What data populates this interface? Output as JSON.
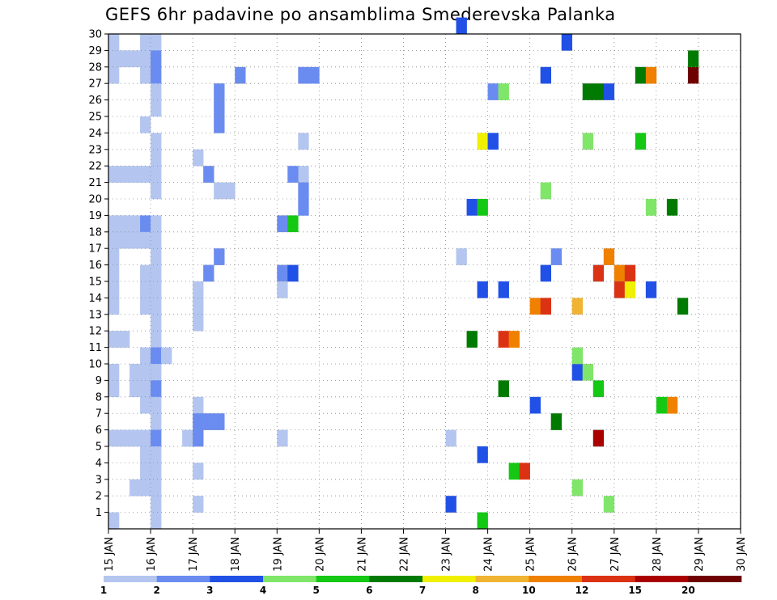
{
  "title": "GEFS 6hr padavine po ansamblima Smederevska Palanka",
  "chart_data": {
    "type": "heatmap",
    "title": "GEFS 6hr padavine po ansamblima Smederevska Palanka",
    "y_tick_labels": [
      "1",
      "2",
      "3",
      "4",
      "5",
      "6",
      "7",
      "8",
      "9",
      "10",
      "11",
      "12",
      "13",
      "14",
      "15",
      "16",
      "17",
      "18",
      "19",
      "20",
      "21",
      "22",
      "23",
      "24",
      "25",
      "26",
      "27",
      "28",
      "29",
      "30"
    ],
    "x_tick_labels": [
      "15 JAN",
      "16 JAN",
      "17 JAN",
      "18 JAN",
      "19 JAN",
      "20 JAN",
      "21 JAN",
      "22 JAN",
      "23 JAN",
      "24 JAN",
      "25 JAN",
      "26 JAN",
      "27 JAN",
      "28 JAN",
      "29 JAN",
      "30 JAN"
    ],
    "ylim": [
      0,
      30
    ],
    "grid": true,
    "legend": {
      "position": "bottom",
      "labels": [
        "1",
        "2",
        "3",
        "4",
        "5",
        "6",
        "7",
        "8",
        "10",
        "12",
        "15",
        "20"
      ],
      "colors": [
        "#b4c6f0",
        "#6a8cf0",
        "#2050e6",
        "#80e66a",
        "#14c814",
        "#007a00",
        "#f0f000",
        "#f0b432",
        "#f08000",
        "#dc3214",
        "#aa0000",
        "#6e0000"
      ]
    },
    "cells": [
      {
        "date": "15 JAN",
        "period": "00",
        "member": 29,
        "value": 1
      },
      {
        "date": "15 JAN",
        "period": "00",
        "member": 28,
        "value": 1
      },
      {
        "date": "15 JAN",
        "period": "00",
        "member": 27,
        "value": 1
      },
      {
        "date": "15 JAN",
        "period": "00",
        "member": 21,
        "value": 1
      },
      {
        "date": "15 JAN",
        "period": "00",
        "member": 18,
        "value": 1
      },
      {
        "date": "15 JAN",
        "period": "00",
        "member": 17,
        "value": 1
      },
      {
        "date": "15 JAN",
        "period": "00",
        "member": 16,
        "value": 1
      },
      {
        "date": "15 JAN",
        "period": "00",
        "member": 15,
        "value": 1
      },
      {
        "date": "15 JAN",
        "period": "00",
        "member": 14,
        "value": 1
      },
      {
        "date": "15 JAN",
        "period": "00",
        "member": 13,
        "value": 1
      },
      {
        "date": "15 JAN",
        "period": "00",
        "member": 11,
        "value": 1
      },
      {
        "date": "15 JAN",
        "period": "00",
        "member": 9,
        "value": 1
      },
      {
        "date": "15 JAN",
        "period": "00",
        "member": 8,
        "value": 1
      },
      {
        "date": "15 JAN",
        "period": "00",
        "member": 5,
        "value": 1
      },
      {
        "date": "15 JAN",
        "period": "00",
        "member": 0,
        "value": 1
      },
      {
        "date": "15 JAN",
        "period": "06",
        "member": 28,
        "value": 1
      },
      {
        "date": "15 JAN",
        "period": "06",
        "member": 21,
        "value": 1
      },
      {
        "date": "15 JAN",
        "period": "06",
        "member": 18,
        "value": 1
      },
      {
        "date": "15 JAN",
        "period": "06",
        "member": 17,
        "value": 1
      },
      {
        "date": "15 JAN",
        "period": "06",
        "member": 11,
        "value": 1
      },
      {
        "date": "15 JAN",
        "period": "06",
        "member": 5,
        "value": 1
      },
      {
        "date": "15 JAN",
        "period": "12",
        "member": 28,
        "value": 1
      },
      {
        "date": "15 JAN",
        "period": "12",
        "member": 21,
        "value": 1
      },
      {
        "date": "15 JAN",
        "period": "12",
        "member": 18,
        "value": 1
      },
      {
        "date": "15 JAN",
        "period": "12",
        "member": 17,
        "value": 1
      },
      {
        "date": "15 JAN",
        "period": "12",
        "member": 9,
        "value": 1
      },
      {
        "date": "15 JAN",
        "period": "12",
        "member": 8,
        "value": 1
      },
      {
        "date": "15 JAN",
        "period": "12",
        "member": 5,
        "value": 1
      },
      {
        "date": "15 JAN",
        "period": "12",
        "member": 2,
        "value": 1
      },
      {
        "date": "15 JAN",
        "period": "18",
        "member": 29,
        "value": 1
      },
      {
        "date": "15 JAN",
        "period": "18",
        "member": 28,
        "value": 1
      },
      {
        "date": "15 JAN",
        "period": "18",
        "member": 27,
        "value": 1
      },
      {
        "date": "15 JAN",
        "period": "18",
        "member": 24,
        "value": 1
      },
      {
        "date": "15 JAN",
        "period": "18",
        "member": 21,
        "value": 1
      },
      {
        "date": "15 JAN",
        "period": "18",
        "member": 18,
        "value": 2
      },
      {
        "date": "15 JAN",
        "period": "18",
        "member": 17,
        "value": 1
      },
      {
        "date": "15 JAN",
        "period": "18",
        "member": 15,
        "value": 1
      },
      {
        "date": "15 JAN",
        "period": "18",
        "member": 14,
        "value": 1
      },
      {
        "date": "15 JAN",
        "period": "18",
        "member": 13,
        "value": 1
      },
      {
        "date": "15 JAN",
        "period": "18",
        "member": 10,
        "value": 1
      },
      {
        "date": "15 JAN",
        "period": "18",
        "member": 9,
        "value": 1
      },
      {
        "date": "15 JAN",
        "period": "18",
        "member": 8,
        "value": 1
      },
      {
        "date": "15 JAN",
        "period": "18",
        "member": 7,
        "value": 1
      },
      {
        "date": "15 JAN",
        "period": "18",
        "member": 5,
        "value": 1
      },
      {
        "date": "15 JAN",
        "period": "18",
        "member": 4,
        "value": 1
      },
      {
        "date": "15 JAN",
        "period": "18",
        "member": 3,
        "value": 1
      },
      {
        "date": "15 JAN",
        "period": "18",
        "member": 2,
        "value": 1
      },
      {
        "date": "16 JAN",
        "period": "00",
        "member": 29,
        "value": 1
      },
      {
        "date": "16 JAN",
        "period": "00",
        "member": 28,
        "value": 2
      },
      {
        "date": "16 JAN",
        "period": "00",
        "member": 27,
        "value": 2
      },
      {
        "date": "16 JAN",
        "period": "00",
        "member": 26,
        "value": 1
      },
      {
        "date": "16 JAN",
        "period": "00",
        "member": 25,
        "value": 1
      },
      {
        "date": "16 JAN",
        "period": "00",
        "member": 23,
        "value": 1
      },
      {
        "date": "16 JAN",
        "period": "00",
        "member": 22,
        "value": 1
      },
      {
        "date": "16 JAN",
        "period": "00",
        "member": 21,
        "value": 1
      },
      {
        "date": "16 JAN",
        "period": "00",
        "member": 20,
        "value": 1
      },
      {
        "date": "16 JAN",
        "period": "00",
        "member": 18,
        "value": 1
      },
      {
        "date": "16 JAN",
        "period": "00",
        "member": 17,
        "value": 1
      },
      {
        "date": "16 JAN",
        "period": "00",
        "member": 16,
        "value": 1
      },
      {
        "date": "16 JAN",
        "period": "00",
        "member": 15,
        "value": 1
      },
      {
        "date": "16 JAN",
        "period": "00",
        "member": 14,
        "value": 1
      },
      {
        "date": "16 JAN",
        "period": "00",
        "member": 13,
        "value": 1
      },
      {
        "date": "16 JAN",
        "period": "00",
        "member": 12,
        "value": 1
      },
      {
        "date": "16 JAN",
        "period": "00",
        "member": 11,
        "value": 1
      },
      {
        "date": "16 JAN",
        "period": "00",
        "member": 10,
        "value": 2
      },
      {
        "date": "16 JAN",
        "period": "00",
        "member": 9,
        "value": 1
      },
      {
        "date": "16 JAN",
        "period": "00",
        "member": 8,
        "value": 2
      },
      {
        "date": "16 JAN",
        "period": "00",
        "member": 7,
        "value": 1
      },
      {
        "date": "16 JAN",
        "period": "00",
        "member": 6,
        "value": 1
      },
      {
        "date": "16 JAN",
        "period": "00",
        "member": 5,
        "value": 2
      },
      {
        "date": "16 JAN",
        "period": "00",
        "member": 4,
        "value": 1
      },
      {
        "date": "16 JAN",
        "period": "00",
        "member": 3,
        "value": 1
      },
      {
        "date": "16 JAN",
        "period": "00",
        "member": 2,
        "value": 1
      },
      {
        "date": "16 JAN",
        "period": "00",
        "member": 1,
        "value": 1
      },
      {
        "date": "16 JAN",
        "period": "00",
        "member": 0,
        "value": 1
      },
      {
        "date": "16 JAN",
        "period": "06",
        "member": 10,
        "value": 1
      },
      {
        "date": "16 JAN",
        "period": "18",
        "member": 5,
        "value": 1
      },
      {
        "date": "17 JAN",
        "period": "00",
        "member": 7,
        "value": 1
      },
      {
        "date": "17 JAN",
        "period": "00",
        "member": 22,
        "value": 1
      },
      {
        "date": "17 JAN",
        "period": "12",
        "member": 20,
        "value": 1
      },
      {
        "date": "17 JAN",
        "period": "18",
        "member": 20,
        "value": 1
      },
      {
        "date": "17 JAN",
        "period": "00",
        "member": 6,
        "value": 2
      },
      {
        "date": "17 JAN",
        "period": "00",
        "member": 5,
        "value": 2
      },
      {
        "date": "17 JAN",
        "period": "06",
        "member": 6,
        "value": 2
      },
      {
        "date": "17 JAN",
        "period": "12",
        "member": 6,
        "value": 2
      },
      {
        "date": "17 JAN",
        "period": "06",
        "member": 21,
        "value": 2
      },
      {
        "date": "17 JAN",
        "period": "06",
        "member": 15,
        "value": 2
      },
      {
        "date": "17 JAN",
        "period": "12",
        "member": 26,
        "value": 2
      },
      {
        "date": "17 JAN",
        "period": "12",
        "member": 25,
        "value": 2
      },
      {
        "date": "17 JAN",
        "period": "12",
        "member": 24,
        "value": 2
      },
      {
        "date": "17 JAN",
        "period": "12",
        "member": 16,
        "value": 2
      },
      {
        "date": "18 JAN",
        "period": "00",
        "member": 27,
        "value": 2
      },
      {
        "date": "17 JAN",
        "period": "00",
        "member": 13,
        "value": 1
      },
      {
        "date": "17 JAN",
        "period": "00",
        "member": 14,
        "value": 1
      },
      {
        "date": "17 JAN",
        "period": "00",
        "member": 12,
        "value": 1
      },
      {
        "date": "17 JAN",
        "period": "00",
        "member": 3,
        "value": 1
      },
      {
        "date": "17 JAN",
        "period": "00",
        "member": 1,
        "value": 1
      },
      {
        "date": "19 JAN",
        "period": "00",
        "member": 18,
        "value": 2
      },
      {
        "date": "19 JAN",
        "period": "00",
        "member": 15,
        "value": 2
      },
      {
        "date": "19 JAN",
        "period": "06",
        "member": 18,
        "value": 5
      },
      {
        "date": "19 JAN",
        "period": "06",
        "member": 15,
        "value": 3
      },
      {
        "date": "19 JAN",
        "period": "12",
        "member": 19,
        "value": 2
      },
      {
        "date": "19 JAN",
        "period": "12",
        "member": 21,
        "value": 1
      },
      {
        "date": "19 JAN",
        "period": "06",
        "member": 21,
        "value": 2
      },
      {
        "date": "19 JAN",
        "period": "12",
        "member": 27,
        "value": 2
      },
      {
        "date": "19 JAN",
        "period": "18",
        "member": 27,
        "value": 2
      },
      {
        "date": "19 JAN",
        "period": "00",
        "member": 5,
        "value": 1
      },
      {
        "date": "19 JAN",
        "period": "00",
        "member": 14,
        "value": 1
      },
      {
        "date": "19 JAN",
        "period": "12",
        "member": 23,
        "value": 1
      },
      {
        "date": "19 JAN",
        "period": "12",
        "member": 20,
        "value": 2
      },
      {
        "date": "23 JAN",
        "period": "00",
        "member": 1,
        "value": 3
      },
      {
        "date": "23 JAN",
        "period": "00",
        "member": 5,
        "value": 1
      },
      {
        "date": "23 JAN",
        "period": "06",
        "member": 30,
        "value": 3
      },
      {
        "date": "23 JAN",
        "period": "06",
        "member": 16,
        "value": 1
      },
      {
        "date": "23 JAN",
        "period": "12",
        "member": 19,
        "value": 3
      },
      {
        "date": "23 JAN",
        "period": "12",
        "member": 11,
        "value": 6
      },
      {
        "date": "23 JAN",
        "period": "18",
        "member": 19,
        "value": 5
      },
      {
        "date": "23 JAN",
        "period": "18",
        "member": 23,
        "value": 7
      },
      {
        "date": "23 JAN",
        "period": "18",
        "member": 14,
        "value": 3
      },
      {
        "date": "23 JAN",
        "period": "18",
        "member": 4,
        "value": 3
      },
      {
        "date": "23 JAN",
        "period": "18",
        "member": 0,
        "value": 5
      },
      {
        "date": "24 JAN",
        "period": "00",
        "member": 23,
        "value": 3
      },
      {
        "date": "24 JAN",
        "period": "00",
        "member": 26,
        "value": 2
      },
      {
        "date": "24 JAN",
        "period": "06",
        "member": 26,
        "value": 4
      },
      {
        "date": "24 JAN",
        "period": "06",
        "member": 14,
        "value": 3
      },
      {
        "date": "24 JAN",
        "period": "06",
        "member": 11,
        "value": 12
      },
      {
        "date": "24 JAN",
        "period": "06",
        "member": 8,
        "value": 6
      },
      {
        "date": "24 JAN",
        "period": "12",
        "member": 11,
        "value": 10
      },
      {
        "date": "24 JAN",
        "period": "12",
        "member": 3,
        "value": 5
      },
      {
        "date": "24 JAN",
        "period": "18",
        "member": 3,
        "value": 12
      },
      {
        "date": "25 JAN",
        "period": "00",
        "member": 7,
        "value": 3
      },
      {
        "date": "25 JAN",
        "period": "00",
        "member": 13,
        "value": 10
      },
      {
        "date": "25 JAN",
        "period": "06",
        "member": 13,
        "value": 12
      },
      {
        "date": "25 JAN",
        "period": "06",
        "member": 20,
        "value": 4
      },
      {
        "date": "25 JAN",
        "period": "06",
        "member": 15,
        "value": 3
      },
      {
        "date": "25 JAN",
        "period": "06",
        "member": 27,
        "value": 3
      },
      {
        "date": "25 JAN",
        "period": "12",
        "member": 16,
        "value": 2
      },
      {
        "date": "25 JAN",
        "period": "12",
        "member": 6,
        "value": 6
      },
      {
        "date": "25 JAN",
        "period": "18",
        "member": 29,
        "value": 3
      },
      {
        "date": "26 JAN",
        "period": "00",
        "member": 13,
        "value": 8
      },
      {
        "date": "26 JAN",
        "period": "00",
        "member": 9,
        "value": 3
      },
      {
        "date": "26 JAN",
        "period": "00",
        "member": 2,
        "value": 4
      },
      {
        "date": "26 JAN",
        "period": "00",
        "member": 10,
        "value": 4
      },
      {
        "date": "26 JAN",
        "period": "06",
        "member": 9,
        "value": 4
      },
      {
        "date": "26 JAN",
        "period": "06",
        "member": 26,
        "value": 6
      },
      {
        "date": "26 JAN",
        "period": "06",
        "member": 23,
        "value": 4
      },
      {
        "date": "26 JAN",
        "period": "12",
        "member": 15,
        "value": 12
      },
      {
        "date": "26 JAN",
        "period": "12",
        "member": 5,
        "value": 15
      },
      {
        "date": "26 JAN",
        "period": "12",
        "member": 26,
        "value": 6
      },
      {
        "date": "26 JAN",
        "period": "18",
        "member": 26,
        "value": 3
      },
      {
        "date": "26 JAN",
        "period": "18",
        "member": 16,
        "value": 10
      },
      {
        "date": "26 JAN",
        "period": "12",
        "member": 8,
        "value": 5
      },
      {
        "date": "26 JAN",
        "period": "18",
        "member": 1,
        "value": 4
      },
      {
        "date": "27 JAN",
        "period": "00",
        "member": 15,
        "value": 10
      },
      {
        "date": "27 JAN",
        "period": "00",
        "member": 14,
        "value": 12
      },
      {
        "date": "27 JAN",
        "period": "06",
        "member": 15,
        "value": 12
      },
      {
        "date": "27 JAN",
        "period": "06",
        "member": 14,
        "value": 7
      },
      {
        "date": "27 JAN",
        "period": "12",
        "member": 27,
        "value": 6
      },
      {
        "date": "27 JAN",
        "period": "12",
        "member": 23,
        "value": 5
      },
      {
        "date": "27 JAN",
        "period": "18",
        "member": 27,
        "value": 10
      },
      {
        "date": "27 JAN",
        "period": "18",
        "member": 19,
        "value": 4
      },
      {
        "date": "27 JAN",
        "period": "18",
        "member": 14,
        "value": 3
      },
      {
        "date": "28 JAN",
        "period": "06",
        "member": 19,
        "value": 6
      },
      {
        "date": "28 JAN",
        "period": "12",
        "member": 13,
        "value": 6
      },
      {
        "date": "28 JAN",
        "period": "18",
        "member": 27,
        "value": 20
      },
      {
        "date": "28 JAN",
        "period": "18",
        "member": 28,
        "value": 6
      },
      {
        "date": "28 JAN",
        "period": "00",
        "member": 7,
        "value": 5
      },
      {
        "date": "28 JAN",
        "period": "06",
        "member": 7,
        "value": 10
      }
    ]
  }
}
